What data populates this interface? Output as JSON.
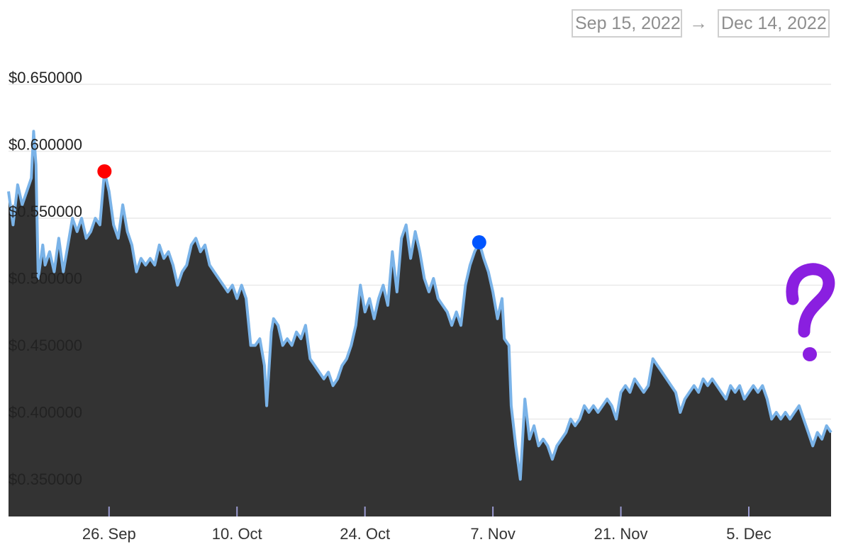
{
  "date_range": {
    "start": "Sep 15, 2022",
    "arrow": "→",
    "end": "Dec 14, 2022"
  },
  "question_mark": "?",
  "colors": {
    "area_fill": "#333333",
    "line": "#7ab3e8",
    "grid": "#e9e9e9",
    "max_marker": "#ff0000",
    "min_marker": "#0055ff",
    "question": "#8a1fe0",
    "range_border": "#cfcfcf"
  },
  "chart_data": {
    "type": "area",
    "title": "",
    "xlabel": "",
    "ylabel": "",
    "x_range": [
      "2022-09-15",
      "2022-12-14"
    ],
    "ylim": [
      0.32,
      0.66
    ],
    "yticks": [
      {
        "value": 0.65,
        "label": "$0.650000"
      },
      {
        "value": 0.6,
        "label": "$0.600000"
      },
      {
        "value": 0.55,
        "label": "$0.550000"
      },
      {
        "value": 0.5,
        "label": "$0.500000"
      },
      {
        "value": 0.45,
        "label": "$0.450000"
      },
      {
        "value": 0.4,
        "label": "$0.400000"
      },
      {
        "value": 0.35,
        "label": "$0.350000"
      }
    ],
    "xticks": [
      {
        "date": "2022-09-26",
        "label": "26. Sep"
      },
      {
        "date": "2022-10-10",
        "label": "10. Oct"
      },
      {
        "date": "2022-10-24",
        "label": "24. Oct"
      },
      {
        "date": "2022-11-07",
        "label": "7. Nov"
      },
      {
        "date": "2022-11-21",
        "label": "21. Nov"
      },
      {
        "date": "2022-12-05",
        "label": "5. Dec"
      }
    ],
    "grid": true,
    "legend": "none",
    "series": [
      {
        "points": [
          [
            "2022-09-15",
            0.57
          ],
          [
            "2022-09-15T12",
            0.545
          ],
          [
            "2022-09-16",
            0.575
          ],
          [
            "2022-09-16T12",
            0.56
          ],
          [
            "2022-09-17",
            0.57
          ],
          [
            "2022-09-17T12",
            0.58
          ],
          [
            "2022-09-17T18",
            0.615
          ],
          [
            "2022-09-18",
            0.59
          ],
          [
            "2022-09-18T06",
            0.505
          ],
          [
            "2022-09-18T18",
            0.53
          ],
          [
            "2022-09-19",
            0.515
          ],
          [
            "2022-09-19T12",
            0.525
          ],
          [
            "2022-09-20",
            0.51
          ],
          [
            "2022-09-20T12",
            0.535
          ],
          [
            "2022-09-21",
            0.51
          ],
          [
            "2022-09-21T12",
            0.53
          ],
          [
            "2022-09-22",
            0.55
          ],
          [
            "2022-09-22T12",
            0.54
          ],
          [
            "2022-09-23",
            0.55
          ],
          [
            "2022-09-23T12",
            0.535
          ],
          [
            "2022-09-24",
            0.54
          ],
          [
            "2022-09-24T12",
            0.55
          ],
          [
            "2022-09-25",
            0.545
          ],
          [
            "2022-09-25T12",
            0.585
          ],
          [
            "2022-09-26",
            0.57
          ],
          [
            "2022-09-26T12",
            0.545
          ],
          [
            "2022-09-27",
            0.535
          ],
          [
            "2022-09-27T12",
            0.56
          ],
          [
            "2022-09-28",
            0.54
          ],
          [
            "2022-09-28T12",
            0.53
          ],
          [
            "2022-09-29",
            0.51
          ],
          [
            "2022-09-29T12",
            0.52
          ],
          [
            "2022-09-30",
            0.515
          ],
          [
            "2022-09-30T12",
            0.52
          ],
          [
            "2022-10-01",
            0.515
          ],
          [
            "2022-10-01T12",
            0.53
          ],
          [
            "2022-10-02",
            0.52
          ],
          [
            "2022-10-02T12",
            0.525
          ],
          [
            "2022-10-03",
            0.515
          ],
          [
            "2022-10-03T12",
            0.5
          ],
          [
            "2022-10-04",
            0.51
          ],
          [
            "2022-10-04T12",
            0.515
          ],
          [
            "2022-10-05",
            0.53
          ],
          [
            "2022-10-05T12",
            0.535
          ],
          [
            "2022-10-06",
            0.525
          ],
          [
            "2022-10-06T12",
            0.53
          ],
          [
            "2022-10-07",
            0.515
          ],
          [
            "2022-10-07T12",
            0.51
          ],
          [
            "2022-10-08",
            0.505
          ],
          [
            "2022-10-08T12",
            0.5
          ],
          [
            "2022-10-09",
            0.495
          ],
          [
            "2022-10-09T12",
            0.5
          ],
          [
            "2022-10-10",
            0.49
          ],
          [
            "2022-10-10T12",
            0.5
          ],
          [
            "2022-10-11",
            0.49
          ],
          [
            "2022-10-11T12",
            0.455
          ],
          [
            "2022-10-12",
            0.455
          ],
          [
            "2022-10-12T12",
            0.46
          ],
          [
            "2022-10-13",
            0.44
          ],
          [
            "2022-10-13T06",
            0.41
          ],
          [
            "2022-10-13T18",
            0.465
          ],
          [
            "2022-10-14",
            0.475
          ],
          [
            "2022-10-14T12",
            0.47
          ],
          [
            "2022-10-15",
            0.455
          ],
          [
            "2022-10-15T12",
            0.46
          ],
          [
            "2022-10-16",
            0.455
          ],
          [
            "2022-10-16T12",
            0.465
          ],
          [
            "2022-10-17",
            0.46
          ],
          [
            "2022-10-17T12",
            0.47
          ],
          [
            "2022-10-18",
            0.445
          ],
          [
            "2022-10-18T12",
            0.44
          ],
          [
            "2022-10-19",
            0.435
          ],
          [
            "2022-10-19T12",
            0.43
          ],
          [
            "2022-10-20",
            0.435
          ],
          [
            "2022-10-20T12",
            0.425
          ],
          [
            "2022-10-21",
            0.43
          ],
          [
            "2022-10-21T12",
            0.44
          ],
          [
            "2022-10-22",
            0.445
          ],
          [
            "2022-10-22T12",
            0.455
          ],
          [
            "2022-10-23",
            0.47
          ],
          [
            "2022-10-23T12",
            0.5
          ],
          [
            "2022-10-24",
            0.48
          ],
          [
            "2022-10-24T12",
            0.49
          ],
          [
            "2022-10-25",
            0.475
          ],
          [
            "2022-10-25T12",
            0.49
          ],
          [
            "2022-10-26",
            0.5
          ],
          [
            "2022-10-26T12",
            0.485
          ],
          [
            "2022-10-27",
            0.525
          ],
          [
            "2022-10-27T12",
            0.495
          ],
          [
            "2022-10-28",
            0.535
          ],
          [
            "2022-10-28T12",
            0.545
          ],
          [
            "2022-10-29",
            0.52
          ],
          [
            "2022-10-29T12",
            0.54
          ],
          [
            "2022-10-30",
            0.525
          ],
          [
            "2022-10-30T12",
            0.505
          ],
          [
            "2022-10-31",
            0.495
          ],
          [
            "2022-10-31T12",
            0.505
          ],
          [
            "2022-11-01",
            0.49
          ],
          [
            "2022-11-01T12",
            0.485
          ],
          [
            "2022-11-02",
            0.48
          ],
          [
            "2022-11-02T12",
            0.47
          ],
          [
            "2022-11-03",
            0.48
          ],
          [
            "2022-11-03T12",
            0.47
          ],
          [
            "2022-11-04",
            0.5
          ],
          [
            "2022-11-04T12",
            0.515
          ],
          [
            "2022-11-05",
            0.525
          ],
          [
            "2022-11-05T12",
            0.532
          ],
          [
            "2022-11-06",
            0.52
          ],
          [
            "2022-11-06T12",
            0.51
          ],
          [
            "2022-11-07",
            0.495
          ],
          [
            "2022-11-07T12",
            0.475
          ],
          [
            "2022-11-08",
            0.49
          ],
          [
            "2022-11-08T06",
            0.46
          ],
          [
            "2022-11-08T18",
            0.455
          ],
          [
            "2022-11-09",
            0.41
          ],
          [
            "2022-11-09T12",
            0.38
          ],
          [
            "2022-11-10",
            0.355
          ],
          [
            "2022-11-10T12",
            0.415
          ],
          [
            "2022-11-11",
            0.385
          ],
          [
            "2022-11-11T12",
            0.395
          ],
          [
            "2022-11-12",
            0.38
          ],
          [
            "2022-11-12T12",
            0.385
          ],
          [
            "2022-11-13",
            0.38
          ],
          [
            "2022-11-13T12",
            0.37
          ],
          [
            "2022-11-14",
            0.38
          ],
          [
            "2022-11-14T12",
            0.385
          ],
          [
            "2022-11-15",
            0.39
          ],
          [
            "2022-11-15T12",
            0.4
          ],
          [
            "2022-11-16",
            0.395
          ],
          [
            "2022-11-16T12",
            0.4
          ],
          [
            "2022-11-17",
            0.41
          ],
          [
            "2022-11-17T12",
            0.405
          ],
          [
            "2022-11-18",
            0.41
          ],
          [
            "2022-11-18T12",
            0.405
          ],
          [
            "2022-11-19",
            0.41
          ],
          [
            "2022-11-19T12",
            0.415
          ],
          [
            "2022-11-20",
            0.41
          ],
          [
            "2022-11-20T12",
            0.4
          ],
          [
            "2022-11-21",
            0.42
          ],
          [
            "2022-11-21T12",
            0.425
          ],
          [
            "2022-11-22",
            0.42
          ],
          [
            "2022-11-22T12",
            0.43
          ],
          [
            "2022-11-23",
            0.425
          ],
          [
            "2022-11-23T12",
            0.42
          ],
          [
            "2022-11-24",
            0.425
          ],
          [
            "2022-11-24T12",
            0.445
          ],
          [
            "2022-11-25",
            0.44
          ],
          [
            "2022-11-25T12",
            0.435
          ],
          [
            "2022-11-26",
            0.43
          ],
          [
            "2022-11-26T12",
            0.425
          ],
          [
            "2022-11-27",
            0.42
          ],
          [
            "2022-11-27T12",
            0.405
          ],
          [
            "2022-11-28",
            0.415
          ],
          [
            "2022-11-28T12",
            0.42
          ],
          [
            "2022-11-29",
            0.425
          ],
          [
            "2022-11-29T12",
            0.42
          ],
          [
            "2022-11-30",
            0.43
          ],
          [
            "2022-11-30T12",
            0.425
          ],
          [
            "2022-12-01",
            0.43
          ],
          [
            "2022-12-01T12",
            0.425
          ],
          [
            "2022-12-02",
            0.42
          ],
          [
            "2022-12-02T12",
            0.415
          ],
          [
            "2022-12-03",
            0.425
          ],
          [
            "2022-12-03T12",
            0.42
          ],
          [
            "2022-12-04",
            0.425
          ],
          [
            "2022-12-04T12",
            0.415
          ],
          [
            "2022-12-05",
            0.42
          ],
          [
            "2022-12-05T12",
            0.425
          ],
          [
            "2022-12-06",
            0.42
          ],
          [
            "2022-12-06T12",
            0.425
          ],
          [
            "2022-12-07",
            0.415
          ],
          [
            "2022-12-07T12",
            0.4
          ],
          [
            "2022-12-08",
            0.405
          ],
          [
            "2022-12-08T12",
            0.4
          ],
          [
            "2022-12-09",
            0.405
          ],
          [
            "2022-12-09T12",
            0.4
          ],
          [
            "2022-12-10",
            0.405
          ],
          [
            "2022-12-10T12",
            0.41
          ],
          [
            "2022-12-11",
            0.4
          ],
          [
            "2022-12-11T12",
            0.39
          ],
          [
            "2022-12-12",
            0.38
          ],
          [
            "2022-12-12T12",
            0.39
          ],
          [
            "2022-12-13",
            0.385
          ],
          [
            "2022-12-13T12",
            0.395
          ],
          [
            "2022-12-14",
            0.39
          ]
        ]
      }
    ],
    "markers": [
      {
        "date": "2022-09-25T12",
        "value": 0.585,
        "color": "#ff0000"
      },
      {
        "date": "2022-11-05T12",
        "value": 0.532,
        "color": "#0055ff"
      }
    ]
  }
}
